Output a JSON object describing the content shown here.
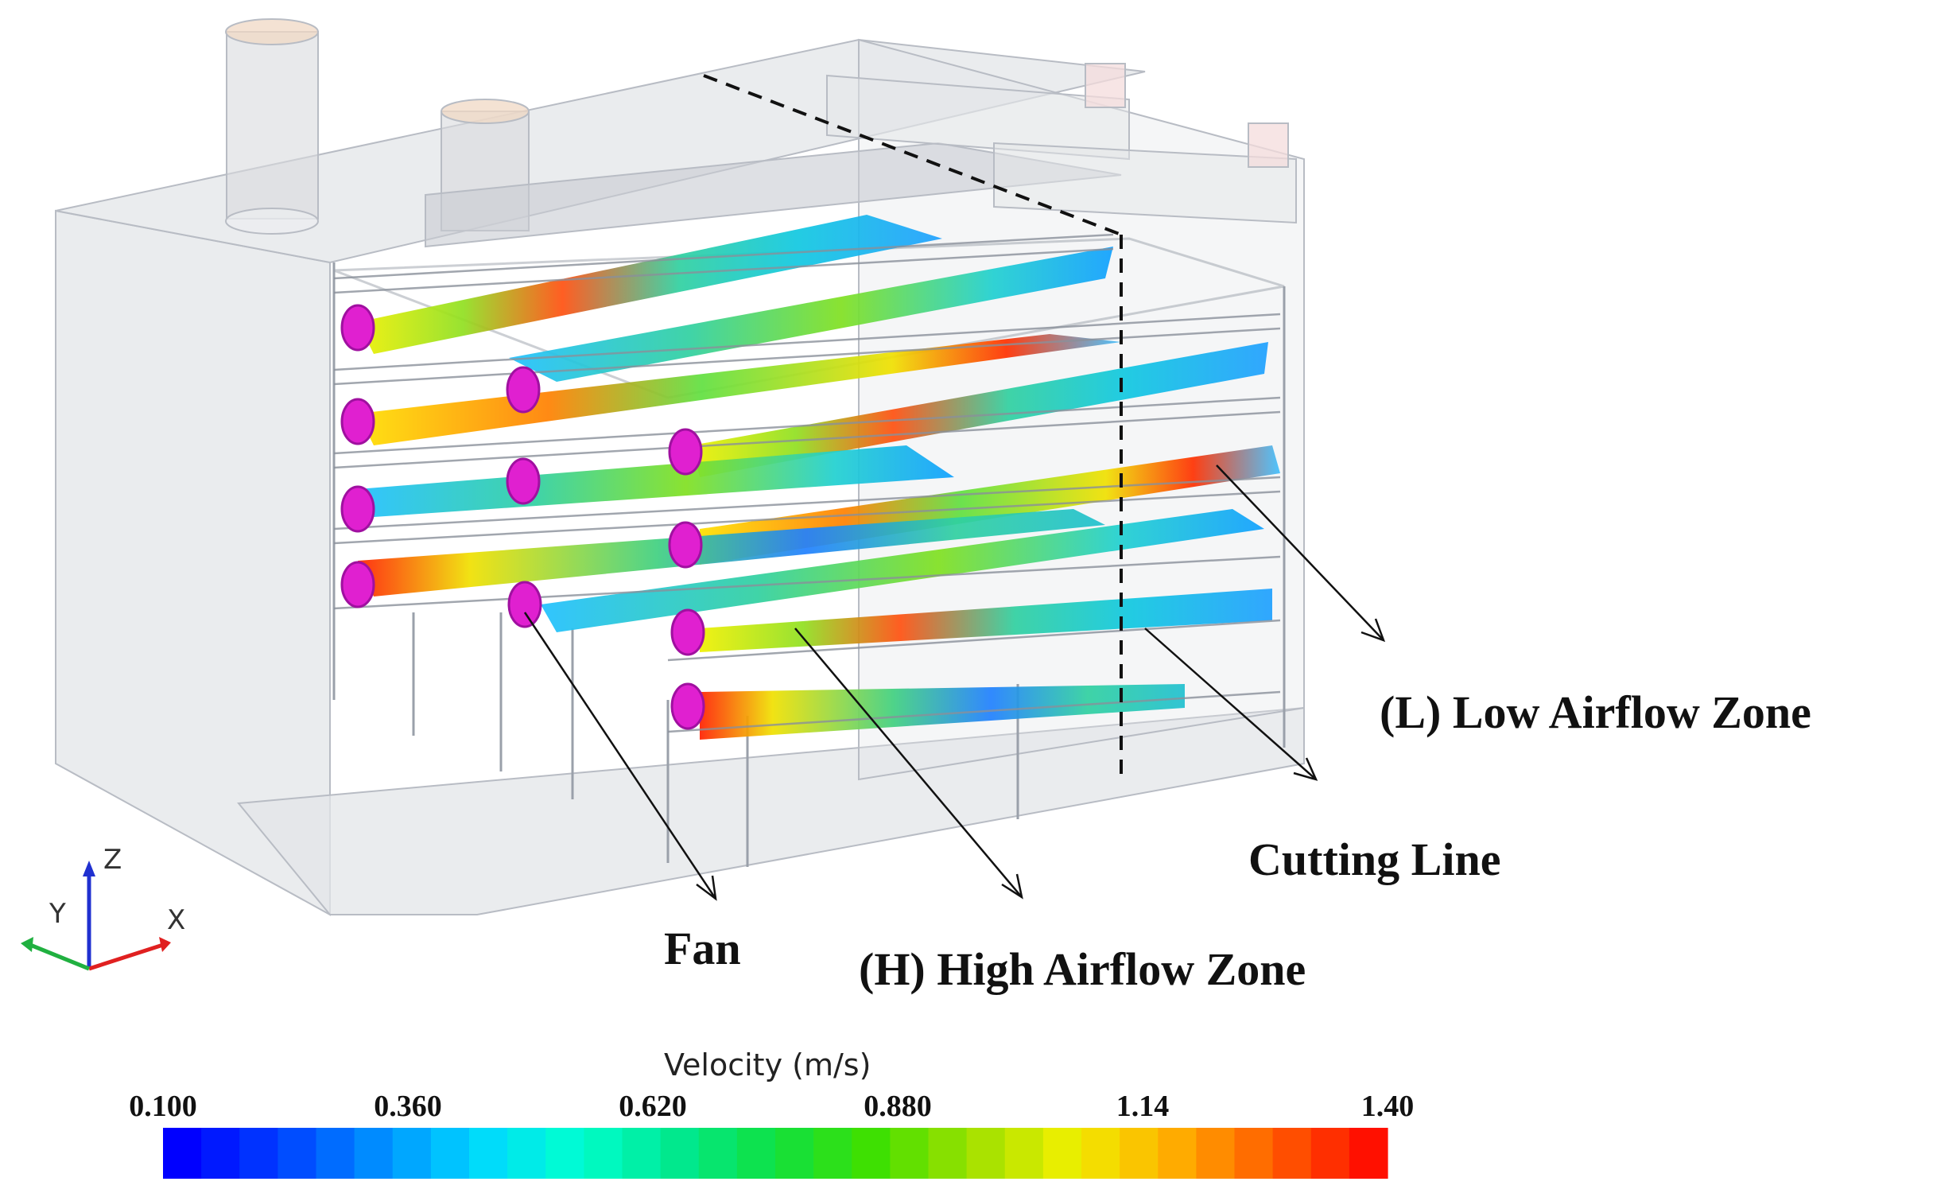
{
  "annotations": {
    "low_zone": "(L) Low Airflow Zone",
    "cutting_line": "Cutting Line",
    "fan": "Fan",
    "high_zone": "(H) High Airflow Zone"
  },
  "axes_triad": {
    "z": "Z",
    "y": "Y",
    "x": "X"
  },
  "colorbar": {
    "title": "Velocity (m/s)",
    "ticks": [
      "0.100",
      "0.360",
      "0.620",
      "0.880",
      "1.14",
      "1.40"
    ],
    "min": 0.1,
    "max": 1.4,
    "colors": [
      "#0000ff",
      "#0040ff",
      "#0090ff",
      "#00d8ff",
      "#00ffd0",
      "#00e890",
      "#10e040",
      "#40e000",
      "#a0e000",
      "#f0f000",
      "#ffb000",
      "#ff6000",
      "#ff1000"
    ]
  },
  "colors": {
    "fan": "#e020d0",
    "cutting_line": "#111111",
    "housing": "#e2e4e8"
  }
}
